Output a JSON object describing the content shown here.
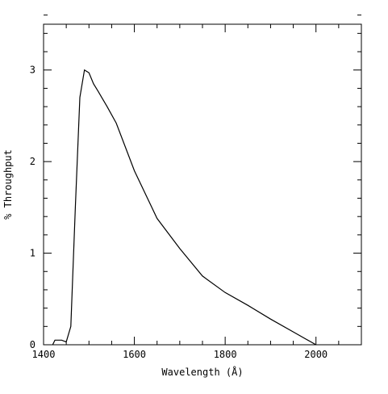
{
  "chart_data": {
    "type": "line",
    "title": "",
    "xlabel": "Wavelength (Å)",
    "ylabel": "% Throughput",
    "xlim": [
      1400,
      2100
    ],
    "ylim": [
      0,
      3.5
    ],
    "x_ticks": [
      1400,
      1600,
      1800,
      2000
    ],
    "y_ticks": [
      0,
      1,
      2,
      3
    ],
    "grid": false,
    "legend": "none",
    "line_color": "#000000",
    "series": [
      {
        "x": [
          1420,
          1425,
          1430,
          1440,
          1450,
          1460,
          1470,
          1480,
          1490,
          1500,
          1510,
          1520,
          1540,
          1560,
          1600,
          1650,
          1700,
          1750,
          1800,
          1850,
          1900,
          1950,
          2000
        ],
        "y": [
          0.0,
          0.05,
          0.05,
          0.05,
          0.03,
          0.2,
          1.5,
          2.7,
          3.0,
          2.97,
          2.85,
          2.77,
          2.6,
          2.42,
          1.9,
          1.38,
          1.05,
          0.75,
          0.57,
          0.43,
          0.28,
          0.14,
          0.0
        ]
      }
    ]
  }
}
